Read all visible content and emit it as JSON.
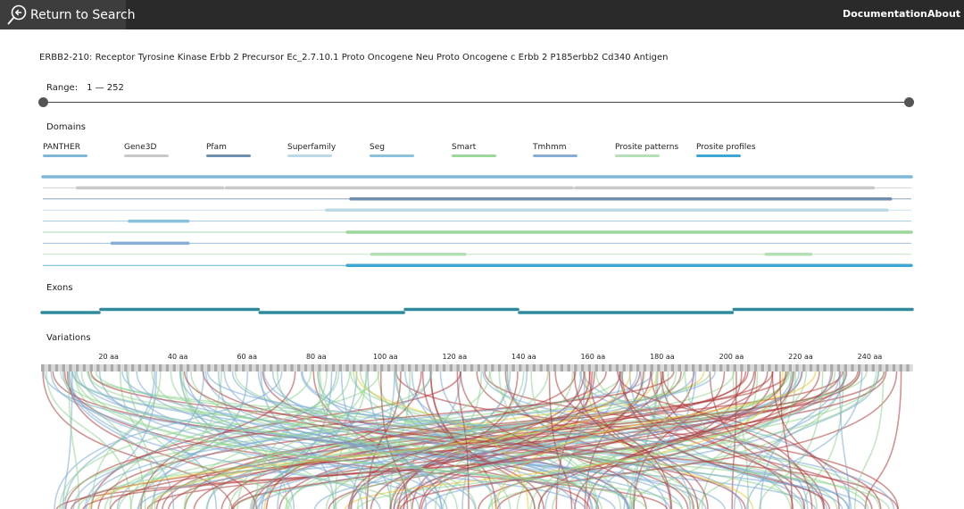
{
  "header": {
    "back_label": "Return to Search",
    "nav": [
      {
        "label": "Documentation"
      },
      {
        "label": "About"
      }
    ]
  },
  "protein": {
    "title": "ERBB2-210: Receptor Tyrosine Kinase Erbb 2 Precursor Ec_2.7.10.1 Proto Oncogene Neu Proto Oncogene c Erbb 2 P185erbb2 Cd340 Antigen"
  },
  "range": {
    "label": "Range:",
    "value": "1 — 252",
    "start": 1,
    "end": 252
  },
  "sections": {
    "domains": "Domains",
    "exons": "Exons",
    "variations": "Variations"
  },
  "legend": [
    {
      "label": "PANTHER",
      "color": "#7fb7d8"
    },
    {
      "label": "Gene3D",
      "color": "#c9c9c9"
    },
    {
      "label": "Pfam",
      "color": "#6f8fb0"
    },
    {
      "label": "Superfamily",
      "color": "#bcd9e6"
    },
    {
      "label": "Seg",
      "color": "#8cc1dc"
    },
    {
      "label": "Smart",
      "color": "#9bd69b"
    },
    {
      "label": "Tmhmm",
      "color": "#88aed4"
    },
    {
      "label": "Prosite patterns",
      "color": "#b5e0b5"
    },
    {
      "label": "Prosite profiles",
      "color": "#3ea6d2"
    }
  ],
  "domain_tracks": [
    {
      "source": "PANTHER",
      "color": "#7fb7d8",
      "bars": [
        [
          1,
          252
        ]
      ]
    },
    {
      "source": "Gene3D",
      "color": "#c9c9c9",
      "bars": [
        [
          11,
          53
        ],
        [
          54,
          154
        ],
        [
          155,
          241
        ]
      ]
    },
    {
      "source": "Pfam",
      "color": "#6f8fb0",
      "bars": [
        [
          90,
          246
        ]
      ]
    },
    {
      "source": "Superfamily",
      "color": "#bcd9e6",
      "bars": [
        [
          83,
          245
        ]
      ]
    },
    {
      "source": "Seg",
      "color": "#8cc1dc",
      "bars": [
        [
          26,
          43
        ]
      ]
    },
    {
      "source": "Smart",
      "color": "#9bd69b",
      "bars": [
        [
          89,
          252
        ]
      ]
    },
    {
      "source": "Tmhmm",
      "color": "#88aed4",
      "bars": [
        [
          21,
          43
        ]
      ]
    },
    {
      "source": "Prosite patterns",
      "color": "#b5e0b5",
      "bars": [
        [
          96,
          123
        ],
        [
          210,
          223
        ]
      ]
    },
    {
      "source": "Prosite profiles",
      "color": "#3ea6d2",
      "bars": [
        [
          89,
          252
        ]
      ]
    }
  ],
  "exons": [
    [
      1,
      17
    ],
    [
      18,
      63
    ],
    [
      64,
      105
    ],
    [
      106,
      138
    ],
    [
      139,
      200
    ],
    [
      201,
      252
    ]
  ],
  "axis": {
    "ticks": [
      "20 aa",
      "40 aa",
      "60 aa",
      "80 aa",
      "100 aa",
      "120 aa",
      "140 aa",
      "160 aa",
      "180 aa",
      "200 aa",
      "220 aa",
      "240 aa"
    ],
    "tick_values": [
      20,
      40,
      60,
      80,
      100,
      120,
      140,
      160,
      180,
      200,
      220,
      240
    ]
  },
  "variation_colors": [
    "#b03a3a",
    "#8fd48f",
    "#7aaad6",
    "#5cc25c",
    "#e8c832",
    "#4a8fc4"
  ]
}
